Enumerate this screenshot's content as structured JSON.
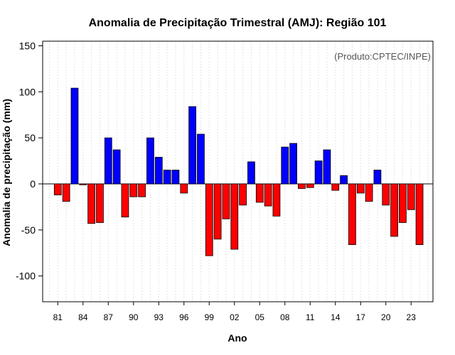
{
  "chart_data": {
    "type": "bar",
    "title": "Anomalia de Precipitação Trimestral (AMJ): Região 101",
    "xlabel": "Ano",
    "ylabel": "Anomalia de precipitação (mm)",
    "annotation": "(Produto:CPTEC/INPE)",
    "ylim": [
      -128,
      155
    ],
    "yticks": [
      -100,
      -50,
      0,
      50,
      100,
      150
    ],
    "xlim": [
      1979.2,
      2025.6
    ],
    "xticks": [
      1981,
      1984,
      1987,
      1990,
      1993,
      1996,
      1999,
      2002,
      2005,
      2008,
      2011,
      2014,
      2017,
      2020,
      2023
    ],
    "xtick_labels": [
      "81",
      "84",
      "87",
      "90",
      "93",
      "96",
      "99",
      "02",
      "05",
      "08",
      "11",
      "14",
      "17",
      "20",
      "23"
    ],
    "grid": "vertical dotted",
    "positive_color": "#0000ff",
    "negative_color": "#ff0000",
    "x": [
      1981,
      1982,
      1983,
      1984,
      1985,
      1986,
      1987,
      1988,
      1989,
      1990,
      1991,
      1992,
      1993,
      1994,
      1995,
      1996,
      1997,
      1998,
      1999,
      2000,
      2001,
      2002,
      2003,
      2004,
      2005,
      2006,
      2007,
      2008,
      2009,
      2010,
      2011,
      2012,
      2013,
      2014,
      2015,
      2016,
      2017,
      2018,
      2019,
      2020,
      2021,
      2022,
      2023,
      2024
    ],
    "values": [
      -12,
      -19,
      104,
      -1,
      -43,
      -42,
      50,
      37,
      -36,
      -14,
      -14,
      50,
      29,
      15,
      15,
      -10,
      84,
      54,
      -78,
      -60,
      -38,
      -71,
      -23,
      24,
      -20,
      -24,
      -35,
      40,
      44,
      -5,
      -4,
      25,
      37,
      -7,
      9,
      -66,
      -10,
      -19,
      15,
      -23,
      -57,
      -42,
      -28,
      -66
    ]
  }
}
